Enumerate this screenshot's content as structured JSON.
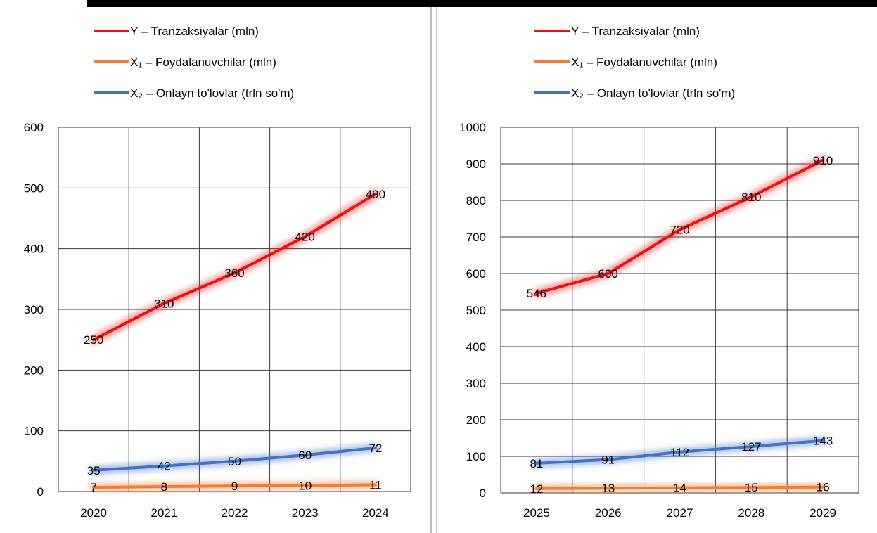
{
  "legend": [
    {
      "name": "Y – Tranzaksiyalar (mln)",
      "color": "#ee1111"
    },
    {
      "name": "X₁ – Foydalanuvchilar (mln)",
      "color": "#ef7f33"
    },
    {
      "name": "X₂ – Onlayn to'lovlar (trln so'm)",
      "color": "#4472c4"
    }
  ],
  "chart_data": [
    {
      "type": "line",
      "categories": [
        "2020",
        "2021",
        "2022",
        "2023",
        "2024"
      ],
      "ylim": [
        0,
        600
      ],
      "yticks": [
        0,
        100,
        200,
        300,
        400,
        500,
        600
      ],
      "grid": true,
      "legend_position": "top",
      "series": [
        {
          "name": "Y – Tranzaksiyalar (mln)",
          "color": "#ee1111",
          "values": [
            250,
            310,
            360,
            420,
            490
          ]
        },
        {
          "name": "X₁ – Foydalanuvchilar (mln)",
          "color": "#ef7f33",
          "values": [
            7,
            8,
            9,
            10,
            11
          ]
        },
        {
          "name": "X₂ – Onlayn to'lovlar (trln so'm)",
          "color": "#4472c4",
          "values": [
            35,
            42,
            50,
            60,
            72
          ]
        }
      ]
    },
    {
      "type": "line",
      "categories": [
        "2025",
        "2026",
        "2027",
        "2028",
        "2029"
      ],
      "ylim": [
        0,
        1000
      ],
      "yticks": [
        0,
        100,
        200,
        300,
        400,
        500,
        600,
        700,
        800,
        900,
        1000
      ],
      "grid": true,
      "legend_position": "top",
      "series": [
        {
          "name": "Y – Tranzaksiyalar (mln)",
          "color": "#ee1111",
          "values": [
            546,
            600,
            720,
            810,
            910
          ]
        },
        {
          "name": "X₁ – Foydalanuvchilar (mln)",
          "color": "#ef7f33",
          "values": [
            12,
            13,
            14,
            15,
            16
          ]
        },
        {
          "name": "X₂ – Onlayn to'lovlar (trln so'm)",
          "color": "#4472c4",
          "values": [
            81,
            91,
            112,
            127,
            143
          ]
        }
      ]
    }
  ]
}
